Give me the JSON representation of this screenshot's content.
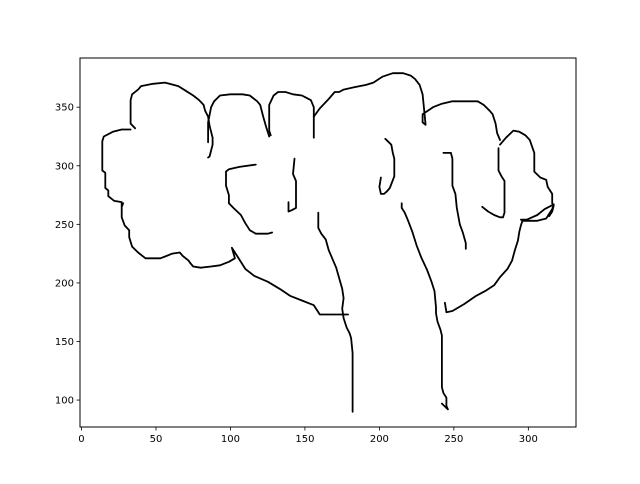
{
  "chart_data": {
    "type": "line",
    "title": "",
    "xlabel": "",
    "ylabel": "",
    "xlim": [
      -1,
      332
    ],
    "ylim": [
      77,
      392
    ],
    "x_ticks": [
      0,
      50,
      100,
      150,
      200,
      250,
      300
    ],
    "y_ticks": [
      100,
      150,
      200,
      250,
      300,
      350
    ],
    "grid": false,
    "line_color": "#000000",
    "series": [
      {
        "points": [
          [
            33,
            331
          ],
          [
            27,
            331
          ],
          [
            21,
            329
          ],
          [
            15,
            325
          ],
          [
            14,
            321
          ],
          [
            14,
            296
          ],
          [
            16,
            294
          ],
          [
            16,
            281
          ],
          [
            18,
            279
          ],
          [
            18,
            274
          ],
          [
            22,
            270
          ],
          [
            27,
            269
          ],
          [
            27,
            265
          ],
          [
            28,
            268
          ],
          [
            27,
            266
          ],
          [
            27,
            256
          ],
          [
            29,
            249
          ],
          [
            32,
            245
          ],
          [
            32,
            239
          ],
          [
            34,
            231
          ],
          [
            38,
            226
          ],
          [
            43,
            221
          ],
          [
            53,
            221
          ],
          [
            57,
            223
          ],
          [
            61,
            225
          ],
          [
            66,
            226
          ],
          [
            68,
            223
          ],
          [
            72,
            219
          ],
          [
            73,
            217
          ],
          [
            75,
            214
          ],
          [
            80,
            213
          ],
          [
            87,
            214
          ],
          [
            93,
            215
          ],
          [
            99,
            218
          ],
          [
            103,
            221
          ],
          [
            101,
            230
          ],
          [
            103,
            226
          ],
          [
            106,
            220
          ],
          [
            110,
            212
          ],
          [
            116,
            206
          ],
          [
            125,
            201
          ],
          [
            133,
            195
          ],
          [
            140,
            189
          ],
          [
            148,
            185
          ],
          [
            156,
            181
          ],
          [
            160,
            173
          ],
          [
            168,
            173
          ],
          [
            176,
            173
          ],
          [
            179,
            173
          ]
        ]
      },
      {
        "points": [
          [
            36,
            332
          ],
          [
            33,
            336
          ],
          [
            33,
            356
          ],
          [
            34,
            361
          ],
          [
            38,
            365
          ],
          [
            40,
            368
          ],
          [
            48,
            370
          ],
          [
            56,
            371
          ],
          [
            59,
            370
          ],
          [
            65,
            368
          ],
          [
            70,
            364
          ],
          [
            75,
            360
          ],
          [
            79,
            356
          ],
          [
            82,
            352
          ],
          [
            83,
            347
          ],
          [
            85,
            342
          ],
          [
            86,
            334
          ],
          [
            88,
            324
          ],
          [
            88,
            318
          ],
          [
            87,
            313
          ],
          [
            86,
            308
          ],
          [
            85,
            307
          ]
        ]
      },
      {
        "points": [
          [
            85,
            320
          ],
          [
            85,
            337
          ],
          [
            87,
            350
          ],
          [
            89,
            355
          ],
          [
            93,
            360
          ],
          [
            100,
            361
          ],
          [
            108,
            361
          ],
          [
            113,
            360
          ],
          [
            118,
            355
          ],
          [
            120,
            352
          ],
          [
            122,
            342
          ],
          [
            124,
            333
          ],
          [
            126,
            325
          ]
        ]
      },
      {
        "points": [
          [
            117,
            301
          ],
          [
            106,
            299
          ],
          [
            99,
            297
          ],
          [
            97,
            295
          ],
          [
            97,
            283
          ],
          [
            99,
            275
          ],
          [
            99,
            268
          ],
          [
            102,
            264
          ],
          [
            107,
            258
          ],
          [
            110,
            251
          ],
          [
            113,
            245
          ],
          [
            117,
            242
          ],
          [
            125,
            242
          ],
          [
            128,
            243
          ]
        ]
      },
      {
        "points": [
          [
            127,
            326
          ],
          [
            126,
            330
          ],
          [
            126,
            352
          ],
          [
            129,
            360
          ],
          [
            132,
            363
          ],
          [
            137,
            363
          ],
          [
            142,
            361
          ],
          [
            148,
            360
          ],
          [
            151,
            358
          ],
          [
            154,
            356
          ],
          [
            156,
            350
          ],
          [
            156,
            324
          ]
        ]
      },
      {
        "points": [
          [
            143,
            306
          ],
          [
            142,
            293
          ],
          [
            144,
            287
          ],
          [
            144,
            264
          ],
          [
            141,
            262
          ],
          [
            139,
            261
          ],
          [
            139,
            269
          ]
        ]
      },
      {
        "points": [
          [
            156,
            342
          ],
          [
            160,
            349
          ],
          [
            166,
            357
          ],
          [
            170,
            363
          ],
          [
            173,
            363
          ],
          [
            176,
            365
          ],
          [
            183,
            367
          ],
          [
            191,
            369
          ],
          [
            196,
            371
          ],
          [
            202,
            376
          ],
          [
            209,
            379
          ],
          [
            216,
            379
          ],
          [
            221,
            377
          ],
          [
            224,
            374
          ],
          [
            227,
            369
          ],
          [
            229,
            361
          ],
          [
            230,
            348
          ],
          [
            231,
            335
          ],
          [
            229,
            337
          ],
          [
            229,
            344
          ],
          [
            236,
            350
          ],
          [
            242,
            353
          ],
          [
            249,
            355
          ],
          [
            258,
            355
          ],
          [
            266,
            355
          ],
          [
            270,
            352
          ],
          [
            274,
            347
          ],
          [
            276,
            344
          ],
          [
            278,
            336
          ],
          [
            279,
            328
          ],
          [
            281,
            322
          ]
        ]
      },
      {
        "points": [
          [
            159,
            260
          ],
          [
            159,
            247
          ],
          [
            161,
            242
          ],
          [
            164,
            237
          ],
          [
            166,
            228
          ],
          [
            169,
            219
          ],
          [
            171,
            213
          ],
          [
            173,
            204
          ],
          [
            175,
            195
          ],
          [
            176,
            187
          ],
          [
            175,
            178
          ],
          [
            176,
            170
          ],
          [
            178,
            162
          ],
          [
            180,
            157
          ],
          [
            181,
            153
          ],
          [
            182,
            140
          ],
          [
            182,
            121
          ],
          [
            182,
            90
          ]
        ]
      },
      {
        "points": [
          [
            204,
            323
          ],
          [
            208,
            318
          ],
          [
            209,
            311
          ],
          [
            210,
            306
          ],
          [
            210,
            291
          ],
          [
            207,
            281
          ],
          [
            205,
            278
          ],
          [
            203,
            276
          ],
          [
            201,
            276
          ],
          [
            200,
            282
          ],
          [
            201,
            290
          ]
        ]
      },
      {
        "points": [
          [
            215,
            268
          ],
          [
            215,
            264
          ],
          [
            217,
            260
          ],
          [
            219,
            254
          ],
          [
            222,
            244
          ],
          [
            225,
            232
          ],
          [
            228,
            222
          ],
          [
            232,
            211
          ],
          [
            235,
            201
          ],
          [
            237,
            193
          ],
          [
            238,
            179
          ],
          [
            238,
            174
          ],
          [
            239,
            167
          ],
          [
            241,
            160
          ],
          [
            242,
            155
          ],
          [
            242,
            111
          ],
          [
            243,
            106
          ],
          [
            245,
            102
          ],
          [
            245,
            95
          ],
          [
            246,
            92
          ],
          [
            242,
            97
          ]
        ]
      },
      {
        "points": [
          [
            243,
            311
          ],
          [
            248,
            311
          ],
          [
            249,
            306
          ],
          [
            249,
            283
          ],
          [
            251,
            276
          ],
          [
            252,
            264
          ],
          [
            254,
            250
          ],
          [
            256,
            243
          ],
          [
            258,
            234
          ],
          [
            258,
            229
          ]
        ]
      },
      {
        "points": [
          [
            244,
            183
          ],
          [
            245,
            175
          ],
          [
            249,
            176
          ],
          [
            257,
            182
          ],
          [
            265,
            189
          ],
          [
            271,
            193
          ],
          [
            277,
            198
          ],
          [
            281,
            205
          ],
          [
            286,
            212
          ],
          [
            289,
            219
          ],
          [
            291,
            228
          ],
          [
            293,
            236
          ],
          [
            294,
            244
          ],
          [
            295,
            249
          ],
          [
            296,
            253
          ],
          [
            306,
            253
          ],
          [
            312,
            255
          ],
          [
            316,
            263
          ],
          [
            317,
            267
          ]
        ]
      },
      {
        "points": [
          [
            269,
            265
          ],
          [
            273,
            261
          ],
          [
            277,
            258
          ],
          [
            281,
            256
          ],
          [
            283,
            256
          ],
          [
            284,
            260
          ],
          [
            284,
            287
          ],
          [
            282,
            291
          ],
          [
            280,
            296
          ],
          [
            280,
            315
          ]
        ]
      },
      {
        "points": [
          [
            281,
            318
          ],
          [
            285,
            324
          ],
          [
            290,
            330
          ],
          [
            294,
            329
          ],
          [
            298,
            326
          ],
          [
            301,
            322
          ],
          [
            304,
            311
          ],
          [
            304,
            295
          ],
          [
            308,
            290
          ],
          [
            312,
            288
          ],
          [
            313,
            282
          ],
          [
            316,
            276
          ],
          [
            316,
            268
          ],
          [
            317,
            266
          ],
          [
            316,
            261
          ],
          [
            314,
            257
          ]
        ]
      },
      {
        "points": [
          [
            317,
            267
          ],
          [
            311,
            263
          ],
          [
            306,
            258
          ],
          [
            299,
            254
          ],
          [
            295,
            254
          ]
        ]
      }
    ]
  }
}
